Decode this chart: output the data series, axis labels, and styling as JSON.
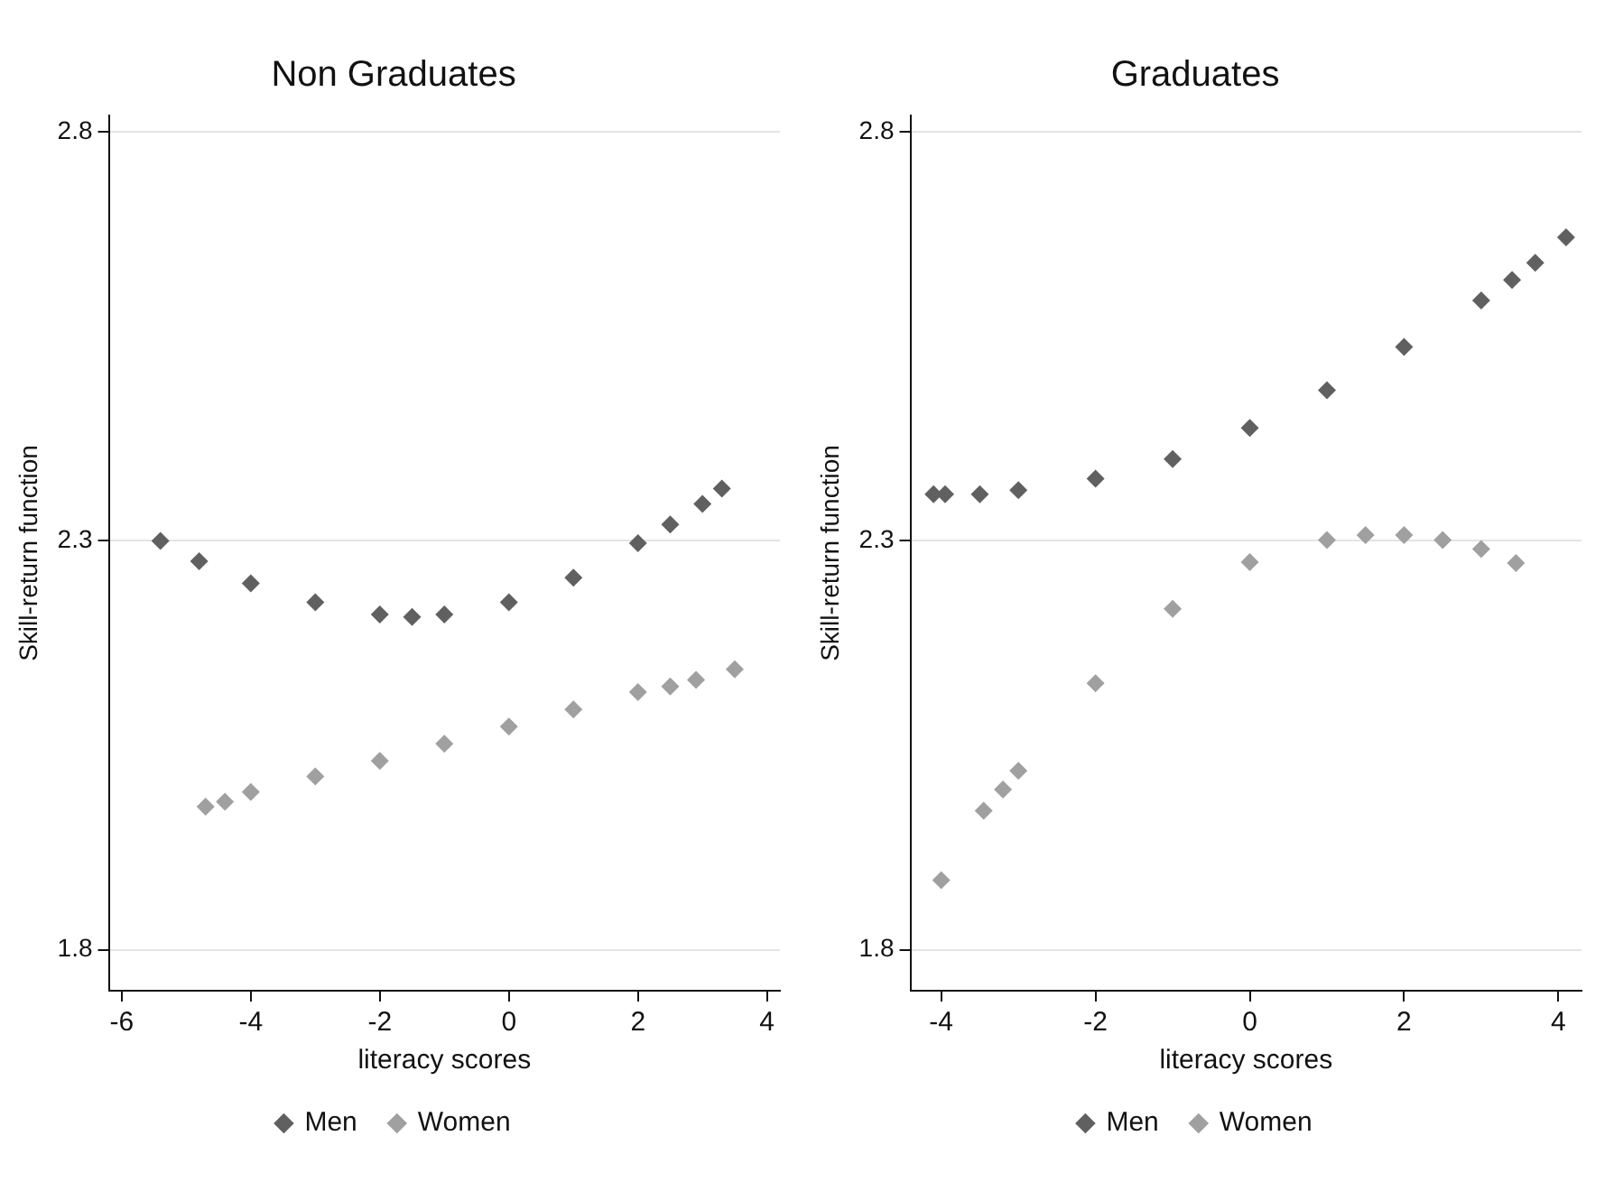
{
  "chart_data": [
    {
      "type": "scatter",
      "title": "Non Graduates",
      "xlabel": "literacy scores",
      "ylabel": "Skill-return function",
      "xlim": [
        -6.2,
        4.2
      ],
      "xticks": [
        -6,
        -4,
        -2,
        0,
        2,
        4
      ],
      "ylim": [
        1.75,
        2.82
      ],
      "yticks": [
        1.8,
        2.3,
        2.8
      ],
      "grid": "y",
      "legend": "bottom",
      "marker": "diamond",
      "series": [
        {
          "name": "Men",
          "color": "#606060",
          "x": [
            -5.4,
            -4.8,
            -4,
            -3,
            -2,
            -1.5,
            -1,
            0,
            1,
            2,
            2.5,
            3,
            3.3
          ],
          "values": [
            2.3,
            2.275,
            2.248,
            2.225,
            2.21,
            2.207,
            2.21,
            2.225,
            2.255,
            2.297,
            2.32,
            2.345,
            2.364
          ]
        },
        {
          "name": "Women",
          "color": "#a0a0a0",
          "x": [
            -4.7,
            -4.4,
            -4,
            -3,
            -2,
            -1,
            0,
            1,
            2,
            2.5,
            2.9,
            3.5
          ],
          "values": [
            1.975,
            1.981,
            1.993,
            2.012,
            2.031,
            2.052,
            2.073,
            2.094,
            2.115,
            2.122,
            2.13,
            2.143
          ]
        }
      ]
    },
    {
      "type": "scatter",
      "title": "Graduates",
      "xlabel": "literacy scores",
      "ylabel": "Skill-return function",
      "xlim": [
        -4.4,
        4.3
      ],
      "xticks": [
        -4,
        -2,
        0,
        2,
        4
      ],
      "ylim": [
        1.75,
        2.82
      ],
      "yticks": [
        1.8,
        2.3,
        2.8
      ],
      "grid": "y",
      "legend": "bottom",
      "marker": "diamond",
      "series": [
        {
          "name": "Men",
          "color": "#606060",
          "x": [
            -4.1,
            -3.95,
            -3.5,
            -3,
            -2,
            -1,
            0,
            1,
            2,
            3,
            3.4,
            3.7,
            4.1
          ],
          "values": [
            2.357,
            2.357,
            2.357,
            2.362,
            2.376,
            2.4,
            2.438,
            2.484,
            2.537,
            2.594,
            2.619,
            2.64,
            2.671
          ]
        },
        {
          "name": "Women",
          "color": "#a0a0a0",
          "x": [
            -4,
            -3.45,
            -3.2,
            -3,
            -2,
            -1,
            0,
            1,
            1.5,
            2,
            2.5,
            3,
            3.45
          ],
          "values": [
            1.885,
            1.97,
            1.996,
            2.019,
            2.126,
            2.217,
            2.274,
            2.301,
            2.307,
            2.307,
            2.301,
            2.29,
            2.273
          ]
        }
      ]
    }
  ]
}
